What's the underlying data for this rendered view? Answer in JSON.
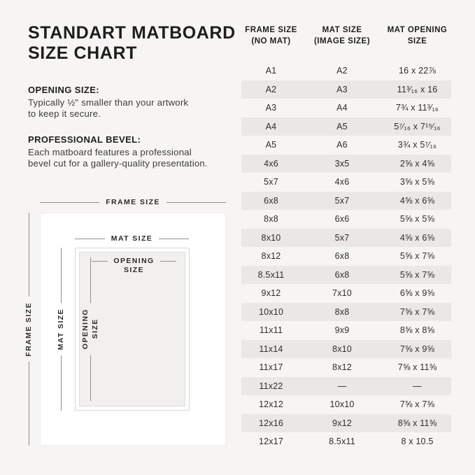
{
  "title": "STANDART MATBOARD\nSIZE CHART",
  "sections": [
    {
      "heading": "OPENING SIZE:",
      "body": "Typically ½\" smaller than your artwork\nto keep it secure."
    },
    {
      "heading": "PROFESSIONAL BEVEL:",
      "body": "Each matboard features a professional\nbevel cut for a gallery-quality presentation."
    }
  ],
  "diagram": {
    "frame_label_top": "FRAME SIZE",
    "frame_label_left": "FRAME SIZE",
    "mat_label_top": "MAT SIZE",
    "mat_label_left": "MAT SIZE",
    "opening_label_top_line1": "OPENING",
    "opening_label_top_line2": "SIZE",
    "opening_label_left": "OPENING\nSIZE"
  },
  "chart_data": {
    "type": "table",
    "title": "STANDART MATBOARD SIZE CHART",
    "columns": [
      [
        "FRAME SIZE",
        "(NO MAT)"
      ],
      [
        "MAT SIZE",
        "(IMAGE SIZE)"
      ],
      [
        "MAT OPENING",
        "SIZE"
      ]
    ],
    "rows": [
      [
        "A1",
        "A2",
        "16 x 22⅞"
      ],
      [
        "A2",
        "A3",
        "11³⁄₁₆ x 16"
      ],
      [
        "A3",
        "A4",
        "7¾ x 11³⁄₁₆"
      ],
      [
        "A4",
        "A5",
        "5⁷⁄₁₆ x 7¹⁵⁄₁₆"
      ],
      [
        "A5",
        "A6",
        "3¾ x 5⁷⁄₁₆"
      ],
      [
        "4x6",
        "3x5",
        "2⅝ x 4⅝"
      ],
      [
        "5x7",
        "4x6",
        "3⅝ x 5⅝"
      ],
      [
        "6x8",
        "5x7",
        "4⅝ x 6⅝"
      ],
      [
        "8x8",
        "6x6",
        "5⅝ x 5⅝"
      ],
      [
        "8x10",
        "5x7",
        "4⅝ x 6⅝"
      ],
      [
        "8x12",
        "6x8",
        "5⅝ x 7⅝"
      ],
      [
        "8.5x11",
        "6x8",
        "5⅝ x 7⅝"
      ],
      [
        "9x12",
        "7x10",
        "6⅝ x 9⅝"
      ],
      [
        "10x10",
        "8x8",
        "7⅝ x 7⅝"
      ],
      [
        "11x11",
        "9x9",
        "8⅝ x 8⅝"
      ],
      [
        "11x14",
        "8x10",
        "7⅝ x 9⅝"
      ],
      [
        "11x17",
        "8x12",
        "7⅝ x 11⅝"
      ],
      [
        "11x22",
        "—",
        "—"
      ],
      [
        "12x12",
        "10x10",
        "7⅝ x 7⅝"
      ],
      [
        "12x16",
        "9x12",
        "8⅝ x 11⅝"
      ],
      [
        "12x17",
        "8.5x11",
        "8 x 10.5"
      ]
    ]
  },
  "colors": {
    "background": "#f6f5f3",
    "stripe": "#e9e8e5",
    "text_dark": "#1e1e1e",
    "text_body": "#3c3c3c",
    "line": "#8f8e8c",
    "frame_white": "#ffffff",
    "mat_face": "#f1f0ee",
    "mat_edge": "#d8d7d4"
  }
}
